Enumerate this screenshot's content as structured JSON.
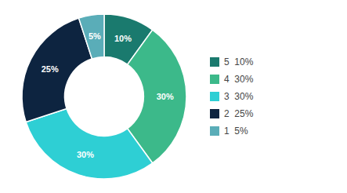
{
  "chart_data": {
    "type": "pie",
    "categories": [
      "5  10%",
      "4  30%",
      "3  30%",
      "2  25%",
      "1  5%"
    ],
    "values": [
      10,
      30,
      30,
      25,
      5
    ],
    "value_labels": [
      "10%",
      "30%",
      "30%",
      "25%",
      "5%"
    ],
    "colors": [
      "#1a7a6e",
      "#3cb98a",
      "#2ecfd4",
      "#0d2440",
      "#5aadb8"
    ],
    "data_labels": true,
    "legend": "right"
  }
}
